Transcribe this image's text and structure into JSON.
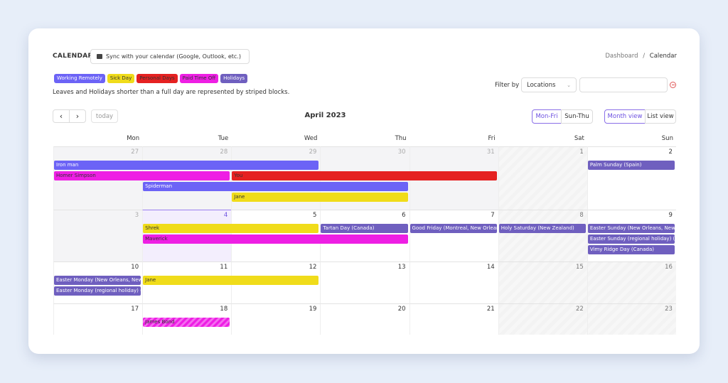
{
  "header": {
    "title": "CALENDAR",
    "sync_label": "Sync with your calendar (Google, Outlook, etc.)"
  },
  "breadcrumb": {
    "parent": "Dashboard",
    "sep": "/",
    "current": "Calendar"
  },
  "legend": [
    {
      "label": "Working Remotely",
      "bg": "#6c63f6",
      "fg": "#ffffff"
    },
    {
      "label": "Sick Day",
      "bg": "#f0dc1a",
      "fg": "#333333"
    },
    {
      "label": "Personal Days",
      "bg": "#e52121",
      "fg": "#333333"
    },
    {
      "label": "Paid Time Off",
      "bg": "#ee1fe4",
      "fg": "#333333"
    },
    {
      "label": "Holidays",
      "bg": "#6f5fbf",
      "fg": "#ffffff"
    }
  ],
  "note": "Leaves and Holidays shorter than a full day are represented by striped blocks.",
  "filter": {
    "label": "Filter by",
    "select_value": "Locations",
    "input_value": ""
  },
  "nav": {
    "prev": "‹",
    "next": "›",
    "today": "today",
    "month_title": "April 2023"
  },
  "week_toggle": {
    "mon_fri": "Mon-Fri",
    "sun_thu": "Sun-Thu"
  },
  "view_toggle": {
    "month": "Month view",
    "list": "List view"
  },
  "weekdays": [
    "Mon",
    "Tue",
    "Wed",
    "Thu",
    "Fri",
    "Sat",
    "Sun"
  ],
  "weeks": [
    {
      "days": [
        "27",
        "28",
        "29",
        "30",
        "31",
        "1",
        "2"
      ]
    },
    {
      "days": [
        "3",
        "4",
        "5",
        "6",
        "7",
        "8",
        "9"
      ]
    },
    {
      "days": [
        "10",
        "11",
        "12",
        "13",
        "14",
        "15",
        "16"
      ]
    },
    {
      "days": [
        "17",
        "18",
        "19",
        "20",
        "21",
        "22",
        "23"
      ]
    }
  ],
  "events": [
    {
      "label": "Iron man",
      "week": 0,
      "start": 0,
      "span": 3,
      "lane": 0,
      "type": "remote",
      "color": "#6c63f6",
      "text": "#ffffff"
    },
    {
      "label": "Homer Simpson",
      "week": 0,
      "start": 0,
      "span": 2,
      "lane": 1,
      "type": "pto",
      "color": "#ee1fe4",
      "text": "#333333"
    },
    {
      "label": "You",
      "week": 0,
      "start": 2,
      "span": 3,
      "lane": 1,
      "type": "personal",
      "color": "#e52121",
      "text": "#333333"
    },
    {
      "label": "Spiderman",
      "week": 0,
      "start": 1,
      "span": 3,
      "lane": 2,
      "type": "remote",
      "color": "#6c63f6",
      "text": "#ffffff"
    },
    {
      "label": "Jane",
      "week": 0,
      "start": 2,
      "span": 2,
      "lane": 3,
      "type": "sick",
      "color": "#f0dc1a",
      "text": "#333333"
    },
    {
      "label": "Palm Sunday (Spain)",
      "week": 0,
      "start": 6,
      "span": 1,
      "lane": 0,
      "type": "holiday",
      "color": "#6f5fbf",
      "text": "#ffffff"
    },
    {
      "label": "Shrek",
      "week": 1,
      "start": 1,
      "span": 2,
      "lane": 0,
      "type": "sick",
      "color": "#f0dc1a",
      "text": "#333333"
    },
    {
      "label": "Tartan Day (Canada)",
      "week": 1,
      "start": 3,
      "span": 1,
      "lane": 0,
      "type": "holiday",
      "color": "#6f5fbf",
      "text": "#ffffff"
    },
    {
      "label": "Good Friday (Montreal, New Orleans)",
      "week": 1,
      "start": 4,
      "span": 1,
      "lane": 0,
      "type": "holiday",
      "color": "#6f5fbf",
      "text": "#ffffff"
    },
    {
      "label": "Holy Saturday (New Zealand)",
      "week": 1,
      "start": 5,
      "span": 1,
      "lane": 0,
      "type": "holiday",
      "color": "#6f5fbf",
      "text": "#ffffff"
    },
    {
      "label": "Easter Sunday (New Orleans, New Zealand)",
      "week": 1,
      "start": 6,
      "span": 1,
      "lane": 0,
      "type": "holiday",
      "color": "#6f5fbf",
      "text": "#ffffff"
    },
    {
      "label": "Maverick",
      "week": 1,
      "start": 1,
      "span": 3,
      "lane": 1,
      "type": "pto",
      "color": "#ee1fe4",
      "text": "#333333"
    },
    {
      "label": "Easter Sunday (regional holiday) (Canada)",
      "week": 1,
      "start": 6,
      "span": 1,
      "lane": 1,
      "type": "holiday",
      "color": "#6f5fbf",
      "text": "#ffffff"
    },
    {
      "label": "Vimy Ridge Day (Canada)",
      "week": 1,
      "start": 6,
      "span": 1,
      "lane": 2,
      "type": "holiday",
      "color": "#6f5fbf",
      "text": "#ffffff"
    },
    {
      "label": "Easter Monday (New Orleans, New Zealand)",
      "week": 2,
      "start": 0,
      "span": 1,
      "lane": 0,
      "type": "holiday",
      "color": "#6f5fbf",
      "text": "#ffffff"
    },
    {
      "label": "Jane",
      "week": 2,
      "start": 1,
      "span": 2,
      "lane": 0,
      "type": "sick",
      "color": "#f0dc1a",
      "text": "#333333"
    },
    {
      "label": "Easter Monday (regional holiday) (Canada)",
      "week": 2,
      "start": 0,
      "span": 1,
      "lane": 1,
      "type": "holiday",
      "color": "#6f5fbf",
      "text": "#ffffff"
    },
    {
      "label": "James Bond",
      "week": 3,
      "start": 1,
      "span": 1,
      "lane": 0,
      "type": "pto",
      "striped": true,
      "color": "#ee1fe4",
      "text": "#333333"
    }
  ]
}
